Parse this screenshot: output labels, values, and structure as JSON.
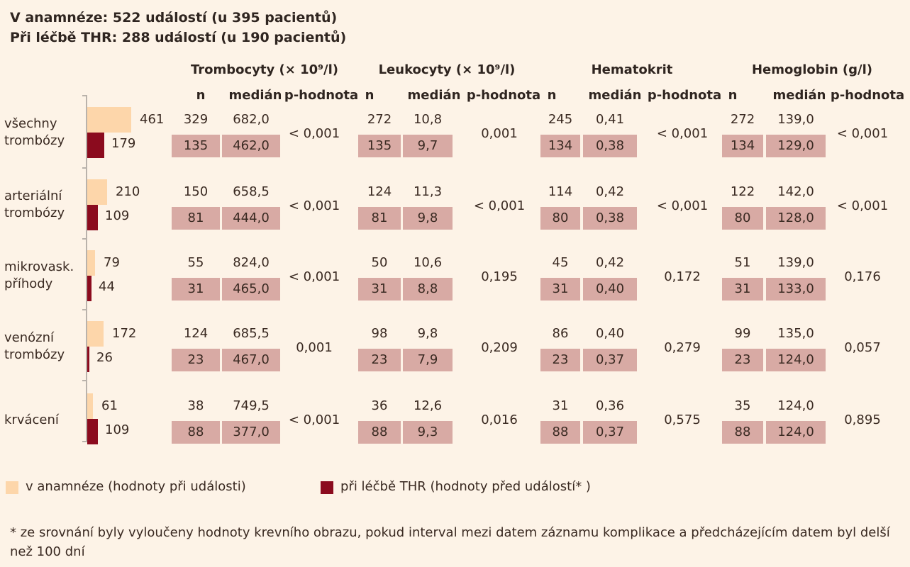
{
  "header": {
    "line1": "V anamnéze: 522 událostí (u 395 pacientů)",
    "line2": "Při léčbě THR: 288 událostí (u 190 pacientů)"
  },
  "groups": [
    {
      "title": "Trombocyty (× 10⁹/l)",
      "n": "n",
      "median": "medián",
      "p": "p-hodnota"
    },
    {
      "title": "Leukocyty (× 10⁹/l)",
      "n": "n",
      "median": "medián",
      "p": "p-hodnota"
    },
    {
      "title": "Hematokrit",
      "n": "n",
      "median": "medián",
      "p": "p-hodnota"
    },
    {
      "title": "Hemoglobin  (g/l)",
      "n": "n",
      "median": "medián",
      "p": "p-hodnota"
    }
  ],
  "rows": [
    {
      "label1": "všechny",
      "label2": "trombózy",
      "cells": [
        {
          "n1": "329",
          "m1": "682,0",
          "n2": "135",
          "m2": "462,0",
          "p": "< 0,001"
        },
        {
          "n1": "272",
          "m1": "10,8",
          "n2": "135",
          "m2": "9,7",
          "p": "0,001"
        },
        {
          "n1": "245",
          "m1": "0,41",
          "n2": "134",
          "m2": "0,38",
          "p": "< 0,001"
        },
        {
          "n1": "272",
          "m1": "139,0",
          "n2": "134",
          "m2": "129,0",
          "p": "< 0,001"
        }
      ]
    },
    {
      "label1": "arteriální",
      "label2": "trombózy",
      "cells": [
        {
          "n1": "150",
          "m1": "658,5",
          "n2": "81",
          "m2": "444,0",
          "p": "< 0,001"
        },
        {
          "n1": "124",
          "m1": "11,3",
          "n2": "81",
          "m2": "9,8",
          "p": "< 0,001"
        },
        {
          "n1": "114",
          "m1": "0,42",
          "n2": "80",
          "m2": "0,38",
          "p": "< 0,001"
        },
        {
          "n1": "122",
          "m1": "142,0",
          "n2": "80",
          "m2": "128,0",
          "p": "< 0,001"
        }
      ]
    },
    {
      "label1": "mikrovask.",
      "label2": "příhody",
      "cells": [
        {
          "n1": "55",
          "m1": "824,0",
          "n2": "31",
          "m2": "465,0",
          "p": "< 0,001"
        },
        {
          "n1": "50",
          "m1": "10,6",
          "n2": "31",
          "m2": "8,8",
          "p": "0,195"
        },
        {
          "n1": "45",
          "m1": "0,42",
          "n2": "31",
          "m2": "0,40",
          "p": "0,172"
        },
        {
          "n1": "51",
          "m1": "139,0",
          "n2": "31",
          "m2": "133,0",
          "p": "0,176"
        }
      ]
    },
    {
      "label1": "venózní",
      "label2": "trombózy",
      "cells": [
        {
          "n1": "124",
          "m1": "685,5",
          "n2": "23",
          "m2": "467,0",
          "p": "0,001"
        },
        {
          "n1": "98",
          "m1": "9,8",
          "n2": "23",
          "m2": "7,9",
          "p": "0,209"
        },
        {
          "n1": "86",
          "m1": "0,40",
          "n2": "23",
          "m2": "0,37",
          "p": "0,279"
        },
        {
          "n1": "99",
          "m1": "135,0",
          "n2": "23",
          "m2": "124,0",
          "p": "0,057"
        }
      ]
    },
    {
      "label1": "krvácení",
      "label2": "",
      "cells": [
        {
          "n1": "38",
          "m1": "749,5",
          "n2": "88",
          "m2": "377,0",
          "p": "< 0,001"
        },
        {
          "n1": "36",
          "m1": "12,6",
          "n2": "88",
          "m2": "9,3",
          "p": "0,016"
        },
        {
          "n1": "31",
          "m1": "0,36",
          "n2": "88",
          "m2": "0,37",
          "p": "0,575"
        },
        {
          "n1": "35",
          "m1": "124,0",
          "n2": "88",
          "m2": "124,0",
          "p": "0,895"
        }
      ]
    }
  ],
  "legend": {
    "history": "v anamnéze (hodnoty při události)",
    "therapy": "při léčbě THR (hodnoty před událostí* )"
  },
  "footnote": "* ze srovnání byly vyloučeny hodnoty krevního obrazu, pokud interval mezi datem záznamu komplikace a předcházejícím datem byl delší než 100 dní",
  "colors": {
    "history": "#fdd6aa",
    "therapy": "#8b0b1e",
    "cell_shade": "#d8aaa4",
    "background": "#fdf3e7"
  },
  "chart_data": {
    "type": "bar",
    "orientation": "horizontal",
    "categories": [
      "všechny trombózy",
      "arteriální trombózy",
      "mikrovask. příhody",
      "venózní trombózy",
      "krvácení"
    ],
    "series": [
      {
        "name": "v anamnéze (hodnoty při události)",
        "values": [
          461,
          210,
          79,
          172,
          61
        ]
      },
      {
        "name": "při léčbě THR (hodnoty před událostí* )",
        "values": [
          179,
          109,
          44,
          26,
          109
        ]
      }
    ],
    "grid": false,
    "legend": "bottom"
  }
}
